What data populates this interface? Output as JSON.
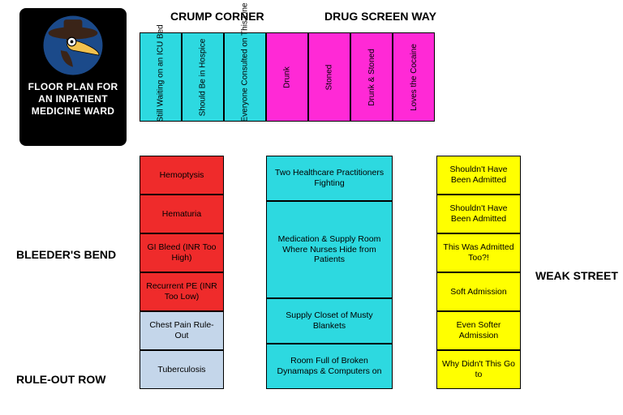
{
  "badge": {
    "title": "FLOOR PLAN FOR AN INPATIENT MEDICINE WARD"
  },
  "streets": {
    "crump": "CRUMP CORNER",
    "drug": "DRUG SCREEN WAY",
    "bleeders": "BLEEDER'S BEND",
    "ruleout": "RULE-OUT ROW",
    "weak": "WEAK STREET"
  },
  "colors": {
    "turquoise": "#2dd9e0",
    "magenta": "#ff29d6",
    "red": "#ef2b2b",
    "paleblue": "#c4d6ea",
    "yellow": "#ffff00",
    "border": "#000000",
    "text_dark": "#000000"
  },
  "top_row": [
    {
      "label": "Still Waiting on an ICU Bed",
      "color": "turquoise"
    },
    {
      "label": "Should Be in Hospice",
      "color": "turquoise"
    },
    {
      "label": "Everyone Consulted on This One",
      "color": "turquoise"
    },
    {
      "label": "Drunk",
      "color": "magenta"
    },
    {
      "label": "Stoned",
      "color": "magenta"
    },
    {
      "label": "Drunk & Stoned",
      "color": "magenta"
    },
    {
      "label": "Loves the Cocaine",
      "color": "magenta"
    }
  ],
  "left_col": [
    {
      "label": "Hemoptysis",
      "color": "red"
    },
    {
      "label": "Hematuria",
      "color": "red"
    },
    {
      "label": "GI Bleed (INR Too High)",
      "color": "red"
    },
    {
      "label": "Recurrent PE (INR Too Low)",
      "color": "red"
    },
    {
      "label": "Chest Pain Rule-Out",
      "color": "paleblue"
    },
    {
      "label": "Tuberculosis",
      "color": "paleblue"
    }
  ],
  "center_col": [
    {
      "label": "Two Healthcare Practitioners Fighting",
      "color": "turquoise",
      "h": 56
    },
    {
      "label": "Medication & Supply Room Where Nurses Hide from Patients",
      "color": "turquoise",
      "h": 120
    },
    {
      "label": "Supply Closet of Musty Blankets",
      "color": "turquoise",
      "h": 56
    },
    {
      "label": "Room Full of Broken Dynamaps & Computers on",
      "color": "turquoise",
      "h": 56
    }
  ],
  "right_col": [
    {
      "label": "Shouldn't Have Been Admitted",
      "color": "yellow"
    },
    {
      "label": "Shouldn't Have Been Admitted",
      "color": "yellow"
    },
    {
      "label": "This Was Admitted Too?!",
      "color": "yellow"
    },
    {
      "label": "Soft Admission",
      "color": "yellow"
    },
    {
      "label": "Even Softer Admission",
      "color": "yellow"
    },
    {
      "label": "Why Didn't This Go to",
      "color": "yellow"
    }
  ]
}
